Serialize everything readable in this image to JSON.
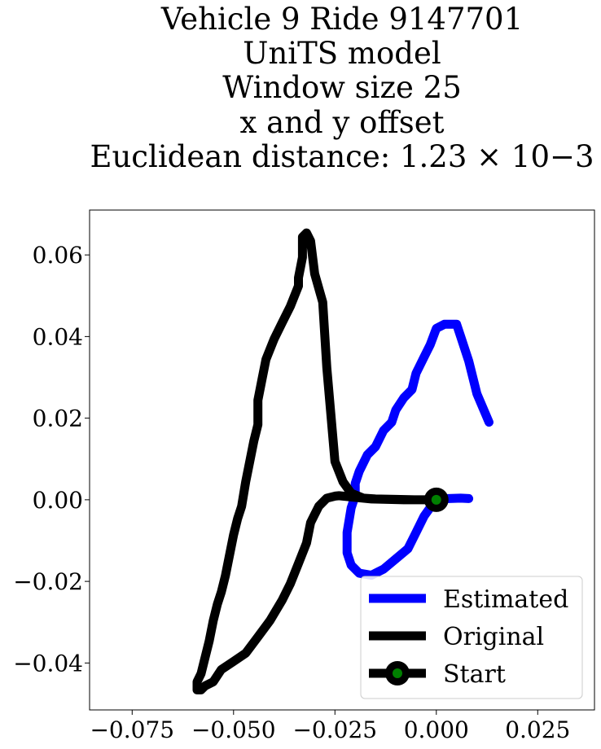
{
  "chart_data": {
    "type": "line",
    "title_lines": [
      "Vehicle 9 Ride 9147701",
      "UniTS model",
      "Window size 25",
      "x and y offset",
      "Euclidean distance: 1.23 × 10−3"
    ],
    "xlabel": "",
    "ylabel": "",
    "xlim": [
      -0.0855,
      0.039
    ],
    "ylim": [
      -0.0515,
      0.071
    ],
    "x_ticks": [
      -0.075,
      -0.05,
      -0.025,
      0.0,
      0.025
    ],
    "x_tick_labels": [
      "−0.075",
      "−0.050",
      "−0.025",
      "0.000",
      "0.025"
    ],
    "y_ticks": [
      0.06,
      0.04,
      0.02,
      0.0,
      -0.02,
      -0.04
    ],
    "y_tick_labels": [
      "0.06",
      "0.04",
      "0.02",
      "0.00",
      "−0.02",
      "−0.04"
    ],
    "grid": false,
    "legend_position": "lower-right",
    "colors": {
      "estimated": "#0000ff",
      "original": "#000000",
      "start_marker": "#000000",
      "start_fill": "#008000"
    },
    "series": [
      {
        "name": "Estimated",
        "color": "#0000ff",
        "x": [
          0.008,
          0.006,
          0.003,
          0.0,
          -0.003,
          -0.005,
          -0.007,
          -0.01,
          -0.013,
          -0.016,
          -0.019,
          -0.021,
          -0.022,
          -0.022,
          -0.021,
          -0.02,
          -0.02,
          -0.019,
          -0.017,
          -0.015,
          -0.013,
          -0.011,
          -0.01,
          -0.008,
          -0.006,
          -0.005,
          -0.003,
          -0.0015,
          0.0,
          0.002,
          0.004,
          0.005,
          0.006,
          0.008,
          0.01,
          0.013
        ],
        "y": [
          0.0003,
          0.0004,
          0.0003,
          0.0002,
          -0.004,
          -0.008,
          -0.012,
          -0.0145,
          -0.017,
          -0.0185,
          -0.018,
          -0.016,
          -0.013,
          -0.008,
          -0.002,
          0.001,
          0.004,
          0.007,
          0.011,
          0.013,
          0.017,
          0.019,
          0.022,
          0.025,
          0.027,
          0.031,
          0.035,
          0.038,
          0.042,
          0.043,
          0.043,
          0.043,
          0.04,
          0.034,
          0.026,
          0.019
        ]
      },
      {
        "name": "Original",
        "color": "#000000",
        "x": [
          0.0,
          -0.005,
          -0.01,
          -0.015,
          -0.018,
          -0.021,
          -0.023,
          -0.025,
          -0.027,
          -0.028,
          -0.03,
          -0.031,
          -0.032,
          -0.032,
          -0.033,
          -0.033,
          -0.034,
          -0.034,
          -0.036,
          -0.038,
          -0.04,
          -0.042,
          -0.043,
          -0.044,
          -0.044,
          -0.045,
          -0.046,
          -0.047,
          -0.048,
          -0.049,
          -0.05,
          -0.051,
          -0.052,
          -0.053,
          -0.054,
          -0.055,
          -0.056,
          -0.057,
          -0.058,
          -0.059,
          -0.059,
          -0.058,
          -0.057,
          -0.055,
          -0.053,
          -0.05,
          -0.047,
          -0.044,
          -0.041,
          -0.038,
          -0.036,
          -0.034,
          -0.032,
          -0.031,
          -0.029,
          -0.027,
          -0.025,
          -0.024,
          -0.022,
          -0.02,
          -0.018,
          -0.016,
          -0.012,
          -0.008,
          -0.004,
          0.0
        ],
        "y": [
          0.0,
          0.0,
          0.0001,
          0.0002,
          0.0004,
          0.0016,
          0.0044,
          0.0094,
          0.0324,
          0.0484,
          0.0554,
          0.0634,
          0.0654,
          0.0654,
          0.0644,
          0.0594,
          0.0544,
          0.0524,
          0.0474,
          0.0434,
          0.0394,
          0.0344,
          0.0294,
          0.0244,
          0.0184,
          0.0144,
          0.0094,
          0.0044,
          -0.0016,
          -0.0046,
          -0.0086,
          -0.0136,
          -0.0186,
          -0.0226,
          -0.0256,
          -0.0296,
          -0.0346,
          -0.0386,
          -0.0426,
          -0.0446,
          -0.0466,
          -0.0466,
          -0.0456,
          -0.0446,
          -0.0416,
          -0.0396,
          -0.0376,
          -0.0336,
          -0.0296,
          -0.0246,
          -0.0206,
          -0.0156,
          -0.0106,
          -0.0056,
          -0.0016,
          0.0004,
          0.0009,
          0.001,
          0.0008,
          0.0006,
          0.0004,
          0.0002,
          0.0001,
          0.0,
          0.0,
          0.0
        ]
      }
    ],
    "start_point": {
      "name": "Start",
      "x": 0.0,
      "y": 0.0
    },
    "legend": [
      "Estimated",
      "Original",
      "Start"
    ]
  }
}
